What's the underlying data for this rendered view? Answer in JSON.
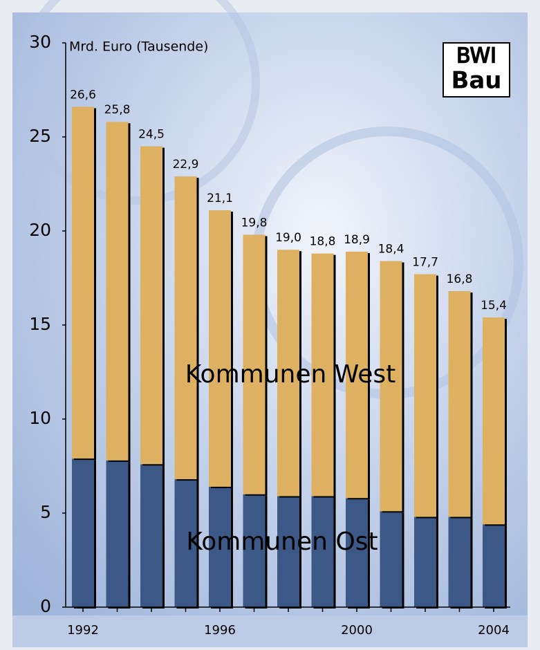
{
  "chart_data": {
    "type": "stacked_bar",
    "y_label": "Mrd. Euro (Tausende)",
    "logo": [
      "BWI",
      "Bau"
    ],
    "categories": [
      "1992",
      null,
      null,
      null,
      "1996",
      null,
      null,
      null,
      "2000",
      null,
      null,
      null,
      "2004"
    ],
    "series": [
      {
        "name": "Kommunen Ost",
        "color": "#3b5887",
        "values": [
          7.9,
          7.8,
          7.6,
          6.8,
          6.4,
          6.0,
          5.9,
          5.9,
          5.8,
          5.1,
          4.8,
          4.8,
          4.4
        ]
      },
      {
        "name": "Kommunen West",
        "color": "#ddb062",
        "values": [
          18.7,
          18.0,
          16.9,
          16.1,
          14.7,
          13.8,
          13.1,
          12.9,
          13.1,
          13.3,
          12.9,
          12.0,
          11.0
        ]
      }
    ],
    "total_labels": [
      "26,6",
      "25,8",
      "24,5",
      "22,9",
      "21,1",
      "19,8",
      "19,0",
      "18,8",
      "18,9",
      "18,4",
      "17,7",
      "16,8",
      "15,4"
    ],
    "ylim": [
      0,
      30
    ],
    "yticks": [
      0,
      5,
      10,
      15,
      20,
      25,
      30
    ],
    "grid": false
  }
}
